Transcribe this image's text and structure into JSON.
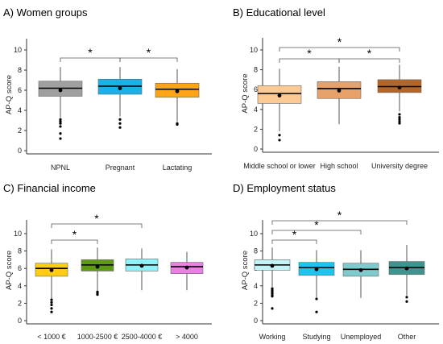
{
  "chart_data": [
    {
      "type": "box",
      "title": "A) Women groups",
      "ylabel": "AP-Q score",
      "ylim": [
        0,
        10.5
      ],
      "yticks": [
        0,
        2,
        4,
        6,
        8,
        10
      ],
      "categories": [
        "NPNL",
        "Pregnant",
        "Lactating"
      ],
      "colors": [
        "#a0a0a0",
        "#19b2e6",
        "#ffa317"
      ],
      "boxes": [
        {
          "q1": 5.4,
          "median": 6.2,
          "q3": 6.9,
          "mean": 6.0,
          "whisker_low": 3.3,
          "whisker_high": 8.3,
          "outliers": [
            3.1,
            2.9,
            2.7,
            2.4,
            1.7,
            1.2
          ]
        },
        {
          "q1": 5.6,
          "median": 6.4,
          "q3": 7.1,
          "mean": 6.2,
          "whisker_low": 3.4,
          "whisker_high": 8.3,
          "outliers": [
            3.1,
            2.7,
            2.3
          ]
        },
        {
          "q1": 5.3,
          "median": 6.1,
          "q3": 6.7,
          "mean": 5.9,
          "whisker_low": 2.9,
          "whisker_high": 8.1,
          "outliers": [
            2.7,
            2.6
          ]
        }
      ],
      "significance": [
        {
          "from": 0,
          "to": 1,
          "label": "*"
        },
        {
          "from": 1,
          "to": 2,
          "label": "*"
        }
      ]
    },
    {
      "type": "box",
      "title": "B) Educational level",
      "ylabel": "AP-Q score",
      "ylim": [
        0,
        10.5
      ],
      "yticks": [
        0,
        2,
        4,
        6,
        8,
        10
      ],
      "categories": [
        "Middle school or lower",
        "High school",
        "University degree"
      ],
      "colors": [
        "#fcca95",
        "#e7a26b",
        "#b36627"
      ],
      "boxes": [
        {
          "q1": 4.6,
          "median": 5.6,
          "q3": 6.4,
          "mean": 5.4,
          "whisker_low": 1.8,
          "whisker_high": 8.1,
          "outliers": [
            1.4,
            0.9
          ]
        },
        {
          "q1": 5.1,
          "median": 6.1,
          "q3": 6.8,
          "mean": 5.9,
          "whisker_low": 2.5,
          "whisker_high": 8.3,
          "outliers": []
        },
        {
          "q1": 5.7,
          "median": 6.3,
          "q3": 7.0,
          "mean": 6.2,
          "whisker_low": 3.8,
          "whisker_high": 8.5,
          "outliers": [
            3.5,
            3.2,
            3.0,
            2.8,
            2.6
          ]
        }
      ],
      "significance": [
        {
          "from": 0,
          "to": 1,
          "label": "*"
        },
        {
          "from": 1,
          "to": 2,
          "label": "*"
        },
        {
          "from": 0,
          "to": 2,
          "label": "*"
        }
      ]
    },
    {
      "type": "box",
      "title": "C) Financial income",
      "ylabel": "AP-Q score",
      "ylim": [
        0,
        10.5
      ],
      "yticks": [
        0,
        2,
        4,
        6,
        8,
        10
      ],
      "categories": [
        "< 1000 €",
        "1000-2500 €",
        "2500-4000 €",
        "> 4000"
      ],
      "colors": [
        "#ffcc14",
        "#5e9a14",
        "#8ef2f9",
        "#eb7fe6"
      ],
      "boxes": [
        {
          "q1": 5.1,
          "median": 6.0,
          "q3": 6.6,
          "mean": 5.8,
          "whisker_low": 2.5,
          "whisker_high": 8.2,
          "outliers": [
            2.4,
            2.1,
            1.8,
            1.4,
            1.0
          ]
        },
        {
          "q1": 5.7,
          "median": 6.4,
          "q3": 7.0,
          "mean": 6.2,
          "whisker_low": 3.4,
          "whisker_high": 8.4,
          "outliers": [
            3.3,
            3.2,
            3.0
          ]
        },
        {
          "q1": 5.7,
          "median": 6.4,
          "q3": 7.1,
          "mean": 6.3,
          "whisker_low": 3.5,
          "whisker_high": 8.3,
          "outliers": []
        },
        {
          "q1": 5.4,
          "median": 6.2,
          "q3": 6.7,
          "mean": 6.1,
          "whisker_low": 3.5,
          "whisker_high": 7.9,
          "outliers": []
        }
      ],
      "significance": [
        {
          "from": 0,
          "to": 1,
          "label": "*"
        },
        {
          "from": 0,
          "to": 2,
          "label": "*"
        }
      ]
    },
    {
      "type": "box",
      "title": "D) Employment status",
      "ylabel": "AP-Q score",
      "ylim": [
        0,
        10.5
      ],
      "yticks": [
        0,
        2,
        4,
        6,
        8,
        10
      ],
      "categories": [
        "Working",
        "Studying",
        "Unemployed",
        "Other"
      ],
      "colors": [
        "#c2f3f7",
        "#1ec3ee",
        "#7fcacc",
        "#3f948f"
      ],
      "boxes": [
        {
          "q1": 5.8,
          "median": 6.4,
          "q3": 7.0,
          "mean": 6.3,
          "whisker_low": 3.9,
          "whisker_high": 8.4,
          "outliers": [
            3.7,
            3.5,
            3.3,
            3.1,
            2.9,
            2.8,
            1.4
          ]
        },
        {
          "q1": 5.2,
          "median": 6.1,
          "q3": 6.7,
          "mean": 5.9,
          "whisker_low": 2.7,
          "whisker_high": 8.1,
          "outliers": [
            2.5,
            1.0
          ]
        },
        {
          "q1": 5.1,
          "median": 5.9,
          "q3": 6.6,
          "mean": 5.8,
          "whisker_low": 2.6,
          "whisker_high": 8.1,
          "outliers": []
        },
        {
          "q1": 5.3,
          "median": 6.1,
          "q3": 6.8,
          "mean": 6.0,
          "whisker_low": 2.9,
          "whisker_high": 8.7,
          "outliers": [
            2.7,
            2.2
          ]
        }
      ],
      "significance": [
        {
          "from": 0,
          "to": 1,
          "label": "*"
        },
        {
          "from": 0,
          "to": 2,
          "label": "*"
        },
        {
          "from": 0,
          "to": 3,
          "label": "*"
        }
      ]
    }
  ]
}
